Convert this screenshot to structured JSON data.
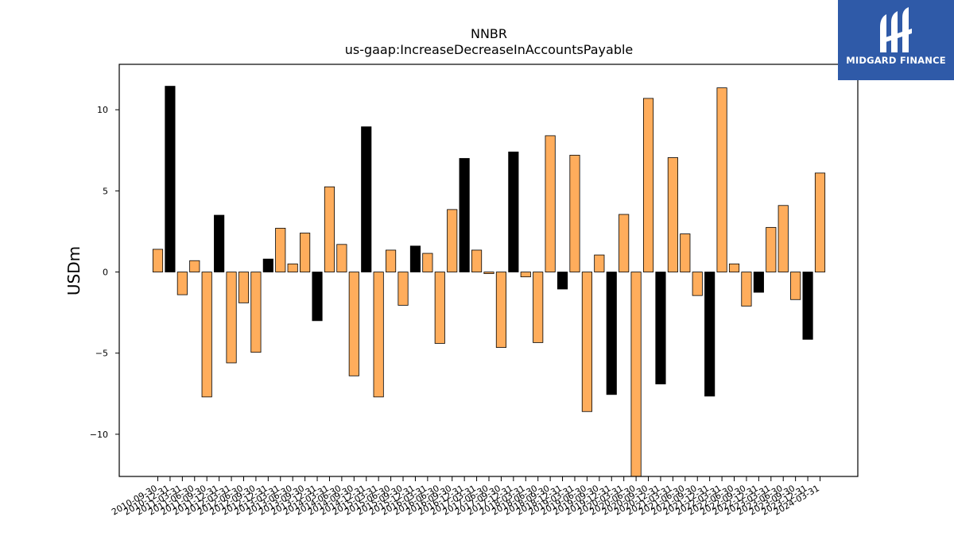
{
  "brand": {
    "name": "MIDGARD FINANCE",
    "logo_bg": "#2f5aa8",
    "logo_icon": "midgard-mark-icon"
  },
  "colors": {
    "positive_bar": "#ffad5c",
    "highlight_bar": "#000000",
    "edge": "#000000"
  },
  "chart_data": {
    "type": "bar",
    "title": "NNBR",
    "subtitle": "us-gaap:IncreaseDecreaseInAccountsPayable",
    "xlabel": "",
    "ylabel": "USDm",
    "ylim": [
      -12.6,
      12.8
    ],
    "yticks": [
      -10,
      -5,
      0,
      5,
      10
    ],
    "ytick_labels": [
      "−10",
      "−5",
      "0",
      "5",
      "10"
    ],
    "grid": false,
    "legend": "none",
    "categories": [
      "2010-09-30",
      "2010-12-31",
      "2011-03-31",
      "2011-06-30",
      "2011-09-30",
      "2011-12-31",
      "2012-03-31",
      "2012-06-30",
      "2012-09-30",
      "2012-12-31",
      "2013-03-31",
      "2013-06-30",
      "2013-09-30",
      "2013-12-31",
      "2014-03-31",
      "2014-06-30",
      "2014-09-30",
      "2014-12-31",
      "2015-03-31",
      "2015-06-30",
      "2015-09-30",
      "2015-12-31",
      "2016-03-31",
      "2016-06-30",
      "2016-09-30",
      "2016-12-31",
      "2017-03-31",
      "2017-06-30",
      "2017-09-30",
      "2017-12-31",
      "2018-03-31",
      "2018-06-30",
      "2018-09-30",
      "2018-12-31",
      "2019-03-31",
      "2019-06-30",
      "2019-09-30",
      "2019-12-31",
      "2020-03-31",
      "2020-06-30",
      "2020-09-30",
      "2020-12-31",
      "2021-03-31",
      "2021-06-30",
      "2021-09-30",
      "2021-12-31",
      "2022-03-31",
      "2022-06-30",
      "2022-09-30",
      "2022-12-31",
      "2023-03-31",
      "2023-06-30",
      "2023-09-30",
      "2023-12-31",
      "2024-03-31"
    ],
    "values": [
      1.4,
      11.45,
      -1.4,
      0.7,
      -7.7,
      3.5,
      -5.6,
      -1.9,
      -4.95,
      0.8,
      2.7,
      0.5,
      2.4,
      -3.0,
      5.25,
      1.7,
      -6.4,
      8.95,
      -7.7,
      1.35,
      -2.05,
      1.6,
      1.15,
      -4.4,
      3.85,
      7.0,
      1.35,
      -0.1,
      -4.65,
      7.4,
      -0.3,
      -4.35,
      8.4,
      -1.05,
      7.2,
      -8.6,
      1.05,
      -7.55,
      3.55,
      -12.6,
      10.7,
      -6.9,
      7.05,
      2.35,
      -1.45,
      -7.65,
      11.35,
      0.5,
      -2.1,
      -1.25,
      2.75,
      4.1,
      -1.7,
      -4.15,
      6.1
    ],
    "highlighted": [
      false,
      true,
      false,
      false,
      false,
      true,
      false,
      false,
      false,
      true,
      false,
      false,
      false,
      true,
      false,
      false,
      false,
      true,
      false,
      false,
      false,
      true,
      false,
      false,
      false,
      true,
      false,
      false,
      false,
      true,
      false,
      false,
      false,
      true,
      false,
      false,
      false,
      true,
      false,
      false,
      false,
      true,
      false,
      false,
      false,
      true,
      false,
      false,
      false,
      true,
      false,
      false,
      false,
      true,
      false
    ]
  }
}
